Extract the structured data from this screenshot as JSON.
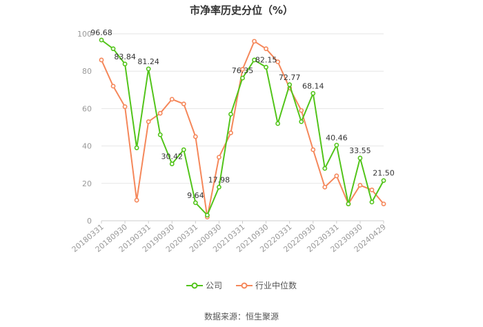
{
  "title": "市净率历史分位（%）",
  "source": "数据来源：恒生聚源",
  "colors": {
    "company": "#52c41a",
    "industry": "#f5875a",
    "grid": "#e6e6e6",
    "axis": "#999999"
  },
  "chart_data": {
    "type": "line",
    "title": "市净率历史分位（%）",
    "ylim": [
      0,
      100
    ],
    "yticks": [
      0,
      20,
      40,
      60,
      80,
      100
    ],
    "xtick_labels": [
      "20180331",
      "20180930",
      "20190331",
      "20190930",
      "20200331",
      "20200930",
      "20210331",
      "20210930",
      "20220331",
      "20220930",
      "20230331",
      "20230930",
      "20240429"
    ],
    "grid": true,
    "legend_position": "bottom",
    "series": [
      {
        "name": "公司",
        "color": "#52c41a",
        "values": [
          96.68,
          92,
          83.84,
          39,
          81.24,
          46,
          30.42,
          38,
          9.64,
          3,
          17.98,
          57,
          76.35,
          86,
          82.15,
          52,
          72.77,
          53,
          68.14,
          28,
          40.46,
          9,
          33.55,
          10,
          21.5
        ],
        "labels": [
          "96.68",
          "",
          "83.84",
          "",
          "81.24",
          "",
          "30.42",
          "",
          "9.64",
          "",
          "17.98",
          "",
          "76.35",
          "",
          "82.15",
          "",
          "72.77",
          "",
          "68.14",
          "",
          "40.46",
          "",
          "33.55",
          "",
          "21.50"
        ]
      },
      {
        "name": "行业中位数",
        "color": "#f5875a",
        "values": [
          86,
          72,
          61,
          11,
          53,
          57.5,
          65,
          62.5,
          45,
          2,
          34,
          47,
          81,
          96,
          92,
          85,
          71,
          59,
          38,
          18,
          24,
          9,
          19,
          16.5,
          9
        ]
      }
    ]
  }
}
